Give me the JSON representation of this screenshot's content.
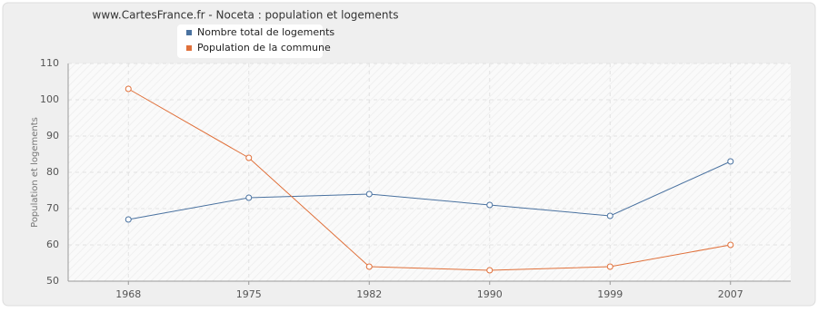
{
  "chart_data": {
    "type": "line",
    "title": "www.CartesFrance.fr - Noceta : population et logements",
    "ylabel": "Population et logements",
    "categories": [
      "1968",
      "1975",
      "1982",
      "1990",
      "1999",
      "2007"
    ],
    "series": [
      {
        "name": "Nombre total de logements",
        "color": "#4a72a0",
        "values": [
          67,
          73,
          74,
          71,
          68,
          83
        ]
      },
      {
        "name": "Population de la commune",
        "color": "#e0703a",
        "values": [
          103,
          84,
          54,
          53,
          54,
          60
        ]
      }
    ],
    "ylim": [
      50,
      110
    ],
    "yticks": [
      50,
      60,
      70,
      80,
      90,
      100,
      110
    ],
    "grid": true
  }
}
